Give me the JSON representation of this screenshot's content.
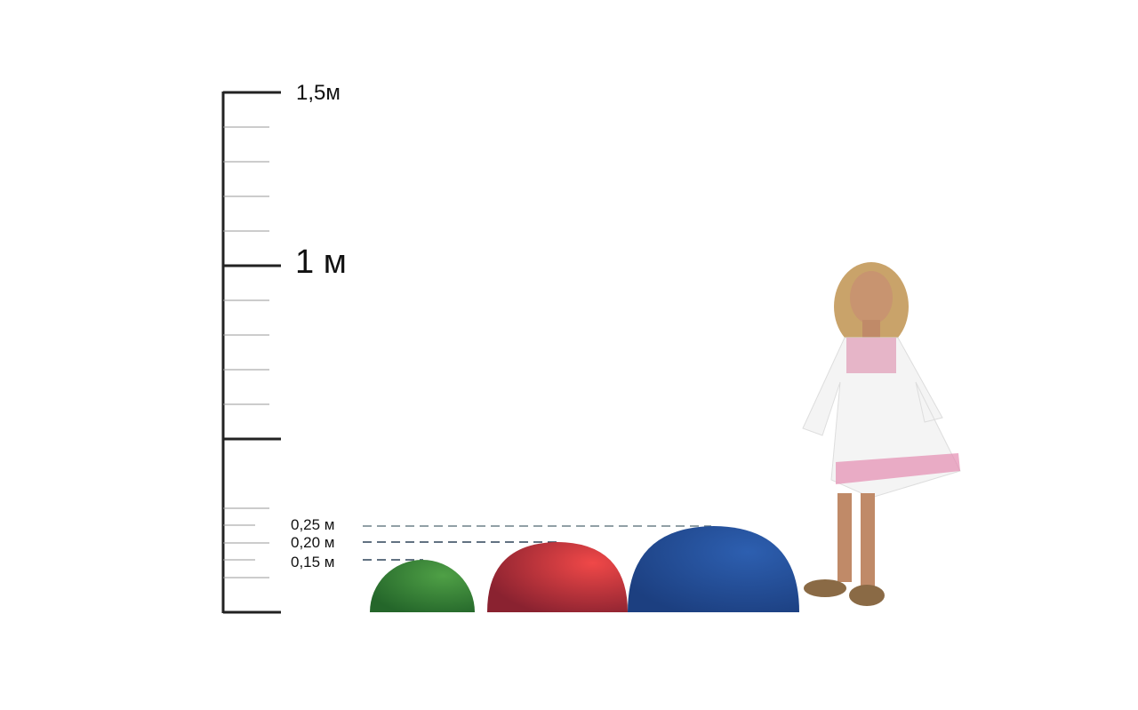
{
  "scale": {
    "labels": {
      "top": "1,5м",
      "middle": "1 м"
    },
    "max_m": 1.5
  },
  "domes": [
    {
      "label": "0,15 м",
      "height_m": 0.15,
      "color": "#3f8f3a"
    },
    {
      "label": "0,20 м",
      "height_m": 0.2,
      "color": "#d8383a"
    },
    {
      "label": "0,25 м",
      "height_m": 0.25,
      "color": "#2452a0"
    }
  ],
  "figure": {
    "icon": "child-figure"
  }
}
